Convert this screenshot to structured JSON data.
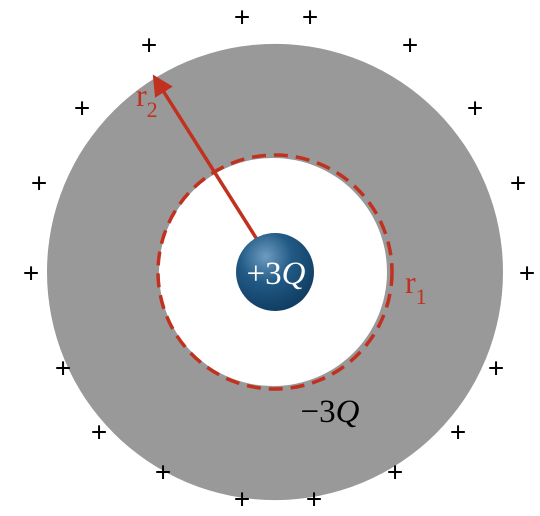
{
  "diagram": {
    "central_charge_label": "+3Q",
    "central_charge_parts": {
      "sign_number": "+3",
      "symbol": "Q"
    },
    "inner_induced_charge_label": "−3Q",
    "inner_induced_charge_parts": {
      "sign_number": "−3",
      "symbol": "Q"
    },
    "inner_radius_label": {
      "base": "r",
      "subscript": "1"
    },
    "outer_radius_label": {
      "base": "r",
      "subscript": "2"
    },
    "outer_surface_charge_symbol": "+",
    "outer_surface_charge_count": 20,
    "colors": {
      "shell": "#999999",
      "radius_marker": "#C0311F",
      "sphere_dark": "#0F3A5F",
      "sphere_mid": "#215A85",
      "sphere_light": "#6F9BC0",
      "sphere_text": "#FFFFFF",
      "text": "#000000"
    }
  }
}
